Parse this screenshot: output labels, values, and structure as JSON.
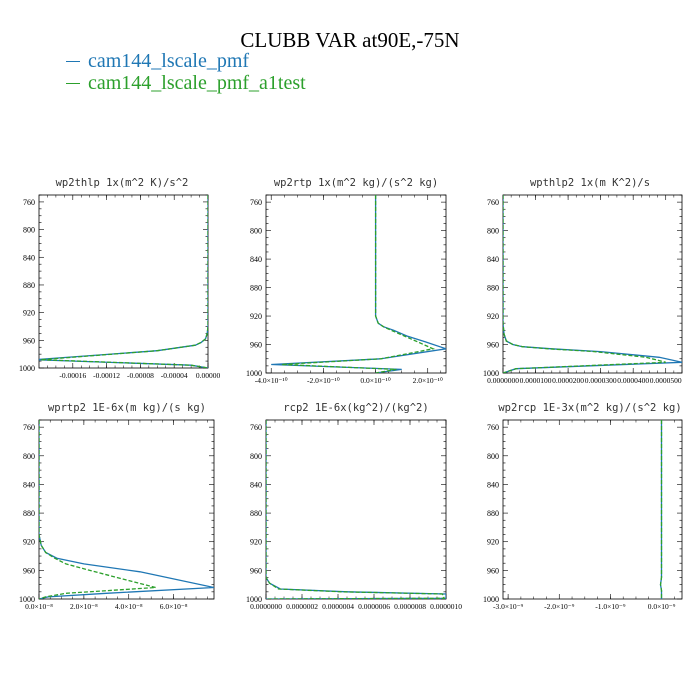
{
  "title": "CLUBB VAR at90E,-75N",
  "legend": [
    {
      "label": "cam144_lscale_pmf",
      "color": "#1f77b4"
    },
    {
      "label": "cam144_lscale_pmf_a1test",
      "color": "#2ca02c"
    }
  ],
  "chart_data": [
    {
      "type": "line",
      "title": "wp2thlp   1x(m^2 K)/s^2",
      "y_ticks": [
        "760",
        "800",
        "840",
        "880",
        "920",
        "960",
        "1000"
      ],
      "ylim": [
        1000,
        750
      ],
      "xlim": [
        -0.0002,
        0.0
      ],
      "x_ticks": [
        {
          "v": -0.00016,
          "label": "-0.00016"
        },
        {
          "v": -0.00012,
          "label": "-0.00012"
        },
        {
          "v": -8e-05,
          "label": "-0.00008"
        },
        {
          "v": -4e-05,
          "label": "-0.00004"
        },
        {
          "v": 0.0,
          "label": "0.00000"
        }
      ],
      "series": [
        {
          "name": "cam144_lscale_pmf",
          "color": "#1f77b4",
          "dash": false,
          "x": [
            0,
            0,
            0,
            -1e-06,
            -3e-06,
            -8e-06,
            -1.5e-05,
            -6e-05,
            -0.000205,
            -2e-05,
            0
          ],
          "y": [
            750,
            880,
            940,
            950,
            958,
            963,
            967,
            975,
            988,
            996,
            1000
          ]
        },
        {
          "name": "cam144_lscale_pmf_a1test",
          "color": "#2ca02c",
          "dash": true,
          "x": [
            0,
            0,
            0,
            -1e-06,
            -3e-06,
            -8e-06,
            -1.5e-05,
            -6e-05,
            -0.000198,
            -2e-05,
            0
          ],
          "y": [
            750,
            880,
            940,
            950,
            958,
            963,
            967,
            975,
            988,
            996,
            1000
          ]
        }
      ]
    },
    {
      "type": "line",
      "title": "wp2rtp   1x(m^2 kg)/(s^2 kg)",
      "y_ticks": [
        "760",
        "800",
        "840",
        "880",
        "920",
        "960",
        "1000"
      ],
      "ylim": [
        1000,
        750
      ],
      "xlim": [
        -4.2e-10,
        2.7e-10
      ],
      "x_ticks": [
        {
          "v": -4e-10,
          "label": "-4.0×10⁻¹⁰"
        },
        {
          "v": -2e-10,
          "label": "-2.0×10⁻¹⁰"
        },
        {
          "v": 0.0,
          "label": "0.0×10⁻¹⁰"
        },
        {
          "v": 2e-10,
          "label": "2.0×10⁻¹⁰"
        }
      ],
      "series": [
        {
          "name": "cam144_lscale_pmf",
          "color": "#1f77b4",
          "dash": false,
          "x": [
            0,
            0,
            0,
            1e-11,
            3e-11,
            7e-11,
            1.2e-10,
            1.9e-10,
            2.7e-10,
            2e-11,
            -4e-10,
            1e-10,
            0
          ],
          "y": [
            750,
            880,
            920,
            930,
            935,
            940,
            948,
            956,
            966,
            980,
            988,
            995,
            1000
          ]
        },
        {
          "name": "cam144_lscale_pmf_a1test",
          "color": "#2ca02c",
          "dash": true,
          "x": [
            0,
            0,
            0,
            1e-11,
            3e-11,
            6e-11,
            1.1e-10,
            1.6e-10,
            2.2e-10,
            2e-11,
            -3.6e-10,
            8e-11,
            0
          ],
          "y": [
            750,
            880,
            920,
            930,
            935,
            940,
            948,
            956,
            966,
            980,
            988,
            995,
            1000
          ]
        }
      ]
    },
    {
      "type": "line",
      "title": "wpthlp2   1x(m K^2)/s",
      "y_ticks": [
        "760",
        "800",
        "840",
        "880",
        "920",
        "960",
        "1000"
      ],
      "ylim": [
        1000,
        750
      ],
      "xlim": [
        0.0,
        5.5e-05
      ],
      "x_ticks": [
        {
          "v": 0.0,
          "label": "0.0000000"
        },
        {
          "v": 1e-05,
          "label": "0.0000100"
        },
        {
          "v": 2e-05,
          "label": "0.0000200"
        },
        {
          "v": 3e-05,
          "label": "0.0000300"
        },
        {
          "v": 4e-05,
          "label": "0.0000400"
        },
        {
          "v": 5e-05,
          "label": "0.0000500"
        }
      ],
      "series": [
        {
          "name": "cam144_lscale_pmf",
          "color": "#1f77b4",
          "dash": false,
          "x": [
            0,
            0,
            3e-07,
            1e-06,
            3e-06,
            6e-06,
            1.5e-05,
            3e-05,
            4.8e-05,
            5.5e-05,
            4e-06,
            0
          ],
          "y": [
            750,
            930,
            945,
            955,
            960,
            963,
            966,
            970,
            978,
            985,
            994,
            1000
          ]
        },
        {
          "name": "cam144_lscale_pmf_a1test",
          "color": "#2ca02c",
          "dash": true,
          "x": [
            0,
            0,
            3e-07,
            1e-06,
            3e-06,
            6e-06,
            1.4e-05,
            2.8e-05,
            4.4e-05,
            5e-05,
            4e-06,
            0
          ],
          "y": [
            750,
            930,
            945,
            955,
            960,
            963,
            966,
            970,
            978,
            985,
            994,
            1000
          ]
        }
      ]
    },
    {
      "type": "line",
      "title": "wprtp2   1E-6x(m kg)/(s kg)",
      "y_ticks": [
        "760",
        "800",
        "840",
        "880",
        "920",
        "960",
        "1000"
      ],
      "ylim": [
        1000,
        750
      ],
      "xlim": [
        0.0,
        7.8e-08
      ],
      "x_ticks": [
        {
          "v": 0.0,
          "label": "0.0×10⁻⁸"
        },
        {
          "v": 2e-08,
          "label": "2.0×10⁻⁸"
        },
        {
          "v": 4e-08,
          "label": "4.0×10⁻⁸"
        },
        {
          "v": 6e-08,
          "label": "6.0×10⁻⁸"
        }
      ],
      "series": [
        {
          "name": "cam144_lscale_pmf",
          "color": "#1f77b4",
          "dash": false,
          "x": [
            0,
            0,
            1e-09,
            3e-09,
            8e-09,
            2e-08,
            4.5e-08,
            7.8e-08,
            3e-08,
            4e-09,
            0
          ],
          "y": [
            750,
            910,
            925,
            935,
            943,
            951,
            962,
            984,
            992,
            997,
            1000
          ]
        },
        {
          "name": "cam144_lscale_pmf_a1test",
          "color": "#2ca02c",
          "dash": true,
          "x": [
            0,
            0,
            1e-09,
            3e-09,
            7e-09,
            1.2e-08,
            2.5e-08,
            5.2e-08,
            1.2e-08,
            3e-09,
            0
          ],
          "y": [
            750,
            910,
            925,
            935,
            943,
            951,
            962,
            984,
            992,
            997,
            1000
          ]
        }
      ]
    },
    {
      "type": "line",
      "title": "rcp2   1E-6x(kg^2)/(kg^2)",
      "y_ticks": [
        "760",
        "800",
        "840",
        "880",
        "920",
        "960",
        "1000"
      ],
      "ylim": [
        1000,
        750
      ],
      "xlim": [
        0.0,
        1e-06
      ],
      "x_ticks": [
        {
          "v": 0.0,
          "label": "0.0000000"
        },
        {
          "v": 2e-07,
          "label": "0.0000002"
        },
        {
          "v": 4e-07,
          "label": "0.0000004"
        },
        {
          "v": 6e-07,
          "label": "0.0000006"
        },
        {
          "v": 8e-07,
          "label": "0.0000008"
        },
        {
          "v": 1e-06,
          "label": "0.0000010"
        }
      ],
      "series": [
        {
          "name": "cam144_lscale_pmf",
          "color": "#1f77b4",
          "dash": false,
          "x": [
            0,
            0,
            2e-08,
            8e-08,
            4.5e-07,
            1e-06,
            1e-06,
            0
          ],
          "y": [
            750,
            970,
            978,
            986,
            990,
            993,
            999,
            1000
          ]
        },
        {
          "name": "cam144_lscale_pmf_a1test",
          "color": "#2ca02c",
          "dash": true,
          "x": [
            0,
            0,
            2e-08,
            7e-08,
            4.2e-07,
            9.8e-07,
            9.9e-07,
            0
          ],
          "y": [
            750,
            970,
            978,
            986,
            990,
            993,
            999,
            1000
          ]
        }
      ]
    },
    {
      "type": "line",
      "title": "wp2rcp   1E-3x(m^2 kg)/(s^2 kg)",
      "y_ticks": [
        "760",
        "800",
        "840",
        "880",
        "920",
        "960",
        "1000"
      ],
      "ylim": [
        1000,
        750
      ],
      "xlim": [
        -3.1e-09,
        4e-10
      ],
      "x_ticks": [
        {
          "v": -3e-09,
          "label": "-3.0×10⁻⁹"
        },
        {
          "v": -2e-09,
          "label": "-2.0×10⁻⁹"
        },
        {
          "v": -1e-09,
          "label": "-1.0×10⁻⁹"
        },
        {
          "v": 0.0,
          "label": "0.0×10⁻⁹"
        }
      ],
      "series": [
        {
          "name": "cam144_lscale_pmf",
          "color": "#1f77b4",
          "dash": false,
          "x": [
            0,
            0,
            -2e-11,
            0,
            0
          ],
          "y": [
            750,
            970,
            980,
            988,
            1000
          ]
        },
        {
          "name": "cam144_lscale_pmf_a1test",
          "color": "#2ca02c",
          "dash": true,
          "x": [
            0,
            0,
            -2e-11,
            0,
            0
          ],
          "y": [
            750,
            970,
            980,
            988,
            1000
          ]
        }
      ]
    }
  ]
}
